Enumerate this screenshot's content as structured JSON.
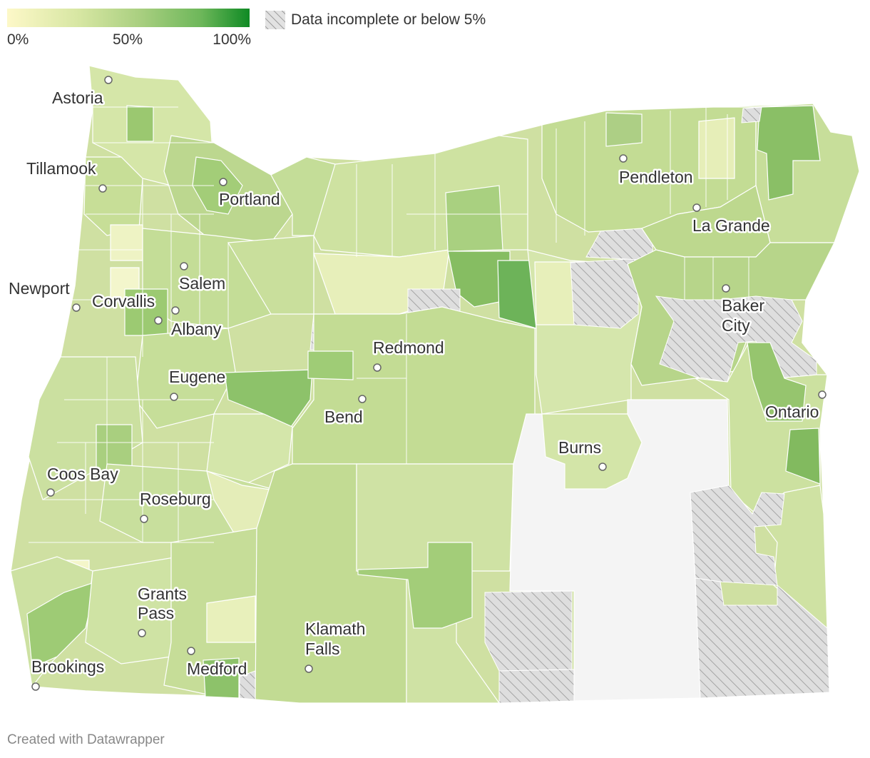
{
  "legend": {
    "min_label": "0%",
    "mid_label": "50%",
    "max_label": "100%",
    "no_data_label": "Data incomplete or below 5%",
    "color_low": "#fdf8c8",
    "color_high": "#0f8a24",
    "no_data_pattern": "diagonal-hatch-gray"
  },
  "cities": [
    {
      "id": "astoria",
      "lines": [
        "Astoria"
      ]
    },
    {
      "id": "tillamook",
      "lines": [
        "Tillamook"
      ]
    },
    {
      "id": "portland",
      "lines": [
        "Portland"
      ]
    },
    {
      "id": "newport",
      "lines": [
        "Newport"
      ]
    },
    {
      "id": "salem",
      "lines": [
        "Salem"
      ]
    },
    {
      "id": "corvallis",
      "lines": [
        "Corvallis"
      ]
    },
    {
      "id": "albany",
      "lines": [
        "Albany"
      ]
    },
    {
      "id": "eugene",
      "lines": [
        "Eugene"
      ]
    },
    {
      "id": "redmond",
      "lines": [
        "Redmond"
      ]
    },
    {
      "id": "bend",
      "lines": [
        "Bend"
      ]
    },
    {
      "id": "coos-bay",
      "lines": [
        "Coos Bay"
      ]
    },
    {
      "id": "roseburg",
      "lines": [
        "Roseburg"
      ]
    },
    {
      "id": "grants-pass",
      "lines": [
        "Grants",
        "Pass"
      ]
    },
    {
      "id": "medford",
      "lines": [
        "Medford"
      ]
    },
    {
      "id": "brookings",
      "lines": [
        "Brookings"
      ]
    },
    {
      "id": "klamath-falls",
      "lines": [
        "Klamath",
        "Falls"
      ]
    },
    {
      "id": "burns",
      "lines": [
        "Burns"
      ]
    },
    {
      "id": "pendleton",
      "lines": [
        "Pendleton"
      ]
    },
    {
      "id": "la-grande",
      "lines": [
        "La Grande"
      ]
    },
    {
      "id": "baker-city",
      "lines": [
        "Baker",
        "City"
      ]
    },
    {
      "id": "ontario",
      "lines": [
        "Ontario"
      ]
    }
  ],
  "credit": "Created with Datawrapper"
}
